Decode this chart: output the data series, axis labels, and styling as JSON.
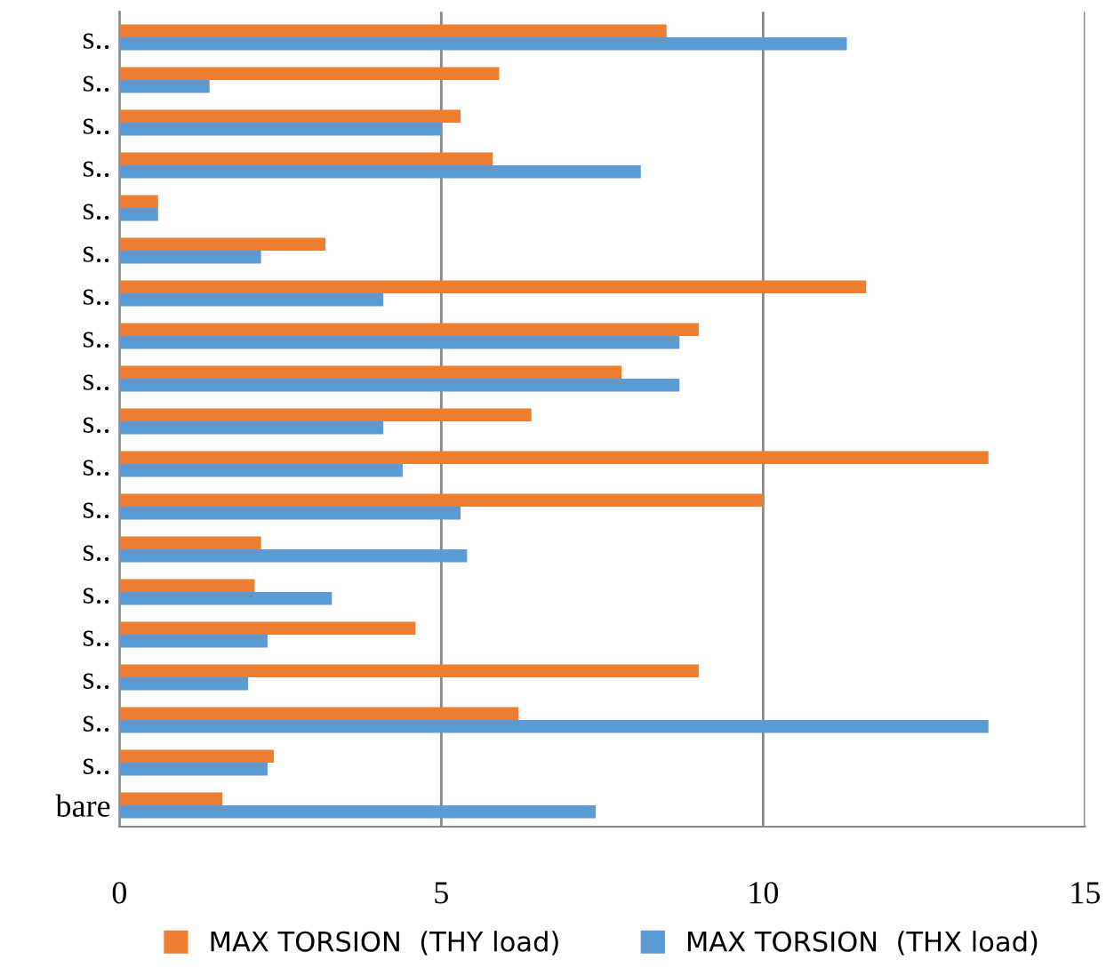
{
  "chart_data": {
    "type": "bar",
    "orientation": "horizontal",
    "categories": [
      "s..",
      "s..",
      "s..",
      "s..",
      "s..",
      "s..",
      "s..",
      "s..",
      "s..",
      "s..",
      "s..",
      "s..",
      "s..",
      "s..",
      "s..",
      "s..",
      "s..",
      "s..",
      "bare"
    ],
    "series": [
      {
        "name": "MAX TORSION  (THY load)",
        "color": "#ed7d31",
        "values": [
          8.5,
          5.9,
          5.3,
          5.8,
          0.6,
          3.2,
          11.6,
          9.0,
          7.8,
          6.4,
          13.5,
          10.0,
          2.2,
          2.1,
          4.6,
          9.0,
          6.2,
          2.4,
          1.6
        ]
      },
      {
        "name": "MAX TORSION  (THX load)",
        "color": "#5b9bd5",
        "values": [
          11.3,
          1.4,
          5.0,
          8.1,
          0.6,
          2.2,
          4.1,
          8.7,
          8.7,
          4.1,
          4.4,
          5.3,
          5.4,
          3.3,
          2.3,
          2.0,
          13.5,
          2.3,
          7.4
        ]
      }
    ],
    "xlim": [
      0,
      15
    ],
    "xticks": [
      0,
      5,
      10,
      15
    ],
    "grid": "x",
    "legend": "bottom"
  }
}
